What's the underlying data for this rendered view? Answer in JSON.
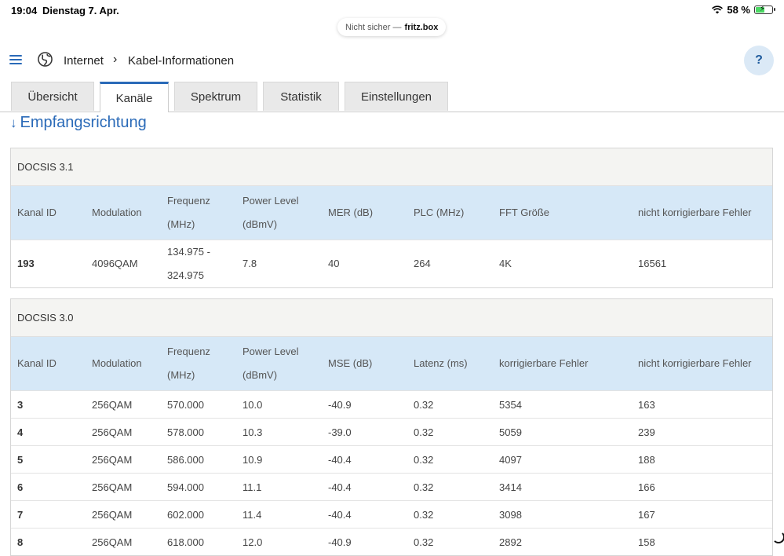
{
  "status_bar": {
    "time": "19:04",
    "date": "Dienstag 7. Apr.",
    "battery": "58 %",
    "battery_level": 0.58
  },
  "url_bar": {
    "security": "Nicht sicher —",
    "host": "fritz.box"
  },
  "header": {
    "breadcrumb_root": "Internet",
    "breadcrumb_current": "Kabel-Informationen",
    "help_label": "?"
  },
  "tabs": [
    {
      "label": "Übersicht"
    },
    {
      "label": "Kanäle",
      "active": true
    },
    {
      "label": "Spektrum"
    },
    {
      "label": "Statistik"
    },
    {
      "label": "Einstellungen"
    }
  ],
  "section_title": "Empfangsrichtung",
  "docsis31": {
    "title": "DOCSIS 3.1",
    "headers": [
      "Kanal ID",
      "Modulation",
      "Frequenz (MHz)",
      "Power Level (dBmV)",
      "MER (dB)",
      "PLC (MHz)",
      "FFT Größe",
      "nicht korrigierbare Fehler"
    ],
    "header_lines": [
      [
        "Kanal ID"
      ],
      [
        "Modulation"
      ],
      [
        "Frequenz",
        "(MHz)"
      ],
      [
        "Power Level",
        "(dBmV)"
      ],
      [
        "MER (dB)"
      ],
      [
        "PLC (MHz)"
      ],
      [
        "FFT Größe"
      ],
      [
        "nicht korrigierbare Fehler"
      ]
    ],
    "rows": [
      {
        "kanal": "193",
        "modulation": "4096QAM",
        "frequenz_a": "134.975 -",
        "frequenz_b": "324.975",
        "power": "7.8",
        "mer": "40",
        "plc": "264",
        "fft": "4K",
        "nkf": "16561"
      }
    ]
  },
  "docsis30": {
    "title": "DOCSIS 3.0",
    "header_lines": [
      [
        "Kanal ID"
      ],
      [
        "Modulation"
      ],
      [
        "Frequenz",
        "(MHz)"
      ],
      [
        "Power Level",
        "(dBmV)"
      ],
      [
        "MSE (dB)"
      ],
      [
        "Latenz (ms)"
      ],
      [
        "korrigierbare Fehler"
      ],
      [
        "nicht korrigierbare Fehler"
      ]
    ],
    "rows": [
      [
        "3",
        "256QAM",
        "570.000",
        "10.0",
        "-40.9",
        "0.32",
        "5354",
        "163"
      ],
      [
        "4",
        "256QAM",
        "578.000",
        "10.3",
        "-39.0",
        "0.32",
        "5059",
        "239"
      ],
      [
        "5",
        "256QAM",
        "586.000",
        "10.9",
        "-40.4",
        "0.32",
        "4097",
        "188"
      ],
      [
        "6",
        "256QAM",
        "594.000",
        "11.1",
        "-40.4",
        "0.32",
        "3414",
        "166"
      ],
      [
        "7",
        "256QAM",
        "602.000",
        "11.4",
        "-40.4",
        "0.32",
        "3098",
        "167"
      ],
      [
        "8",
        "256QAM",
        "618.000",
        "12.0",
        "-40.9",
        "0.32",
        "2892",
        "158"
      ]
    ]
  },
  "icons": {
    "menu": "menu-icon",
    "globe": "globe-icon",
    "wifi": "wifi-icon",
    "battery": "battery-icon"
  },
  "colors": {
    "accent": "#2a6ab8",
    "header_row": "#d6e8f7",
    "panel_title": "#f4f4f2"
  }
}
